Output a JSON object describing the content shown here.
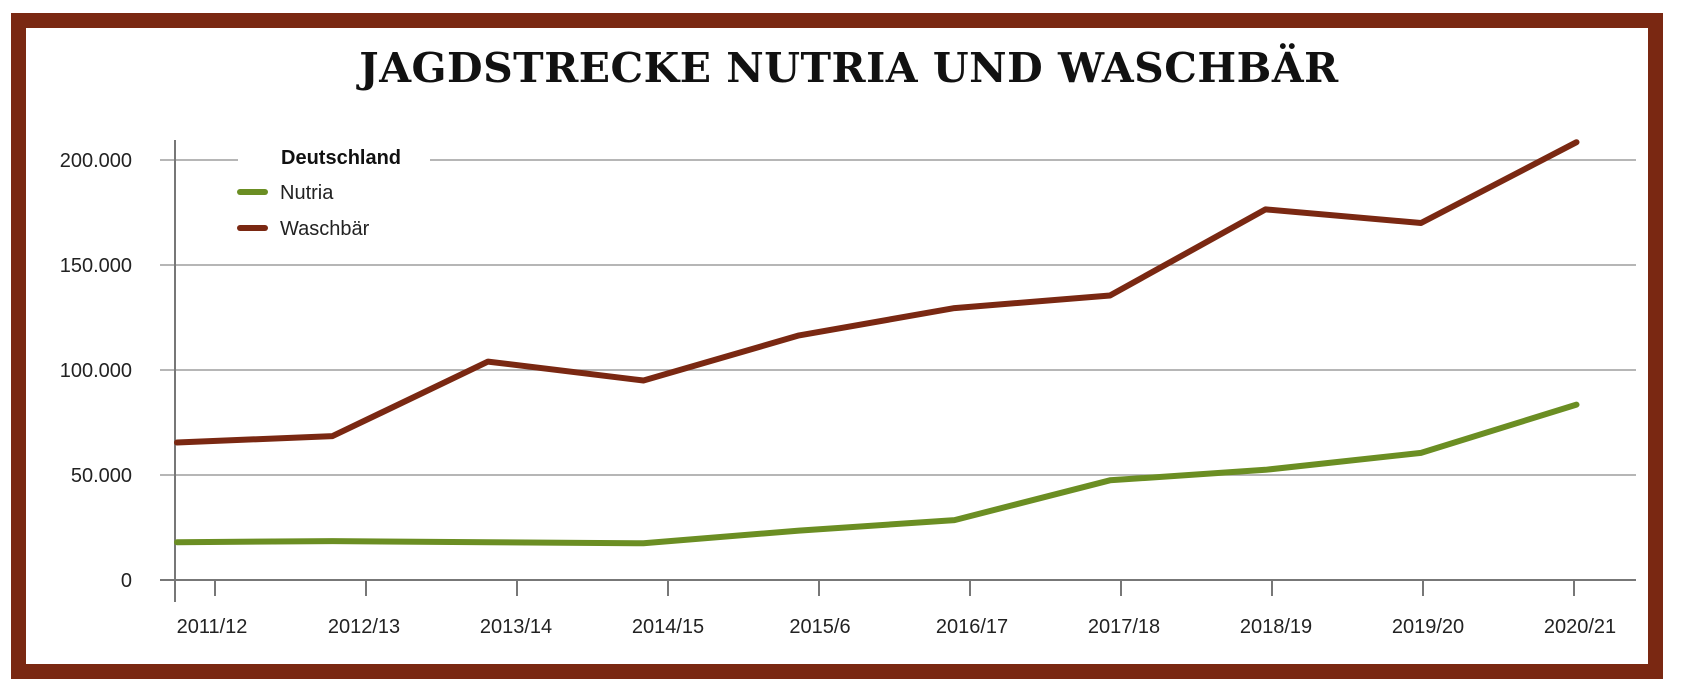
{
  "title": "JAGDSTRECKE NUTRIA UND WASCHBÄR",
  "colors": {
    "frame": "#7a2812",
    "nutria": "#6b8e23",
    "waschbaer": "#7a2812",
    "grid": "#9e9e9e",
    "axis": "#777777"
  },
  "chart_data": {
    "type": "line",
    "title": "JAGDSTRECKE NUTRIA UND WASCHBÄR",
    "xlabel": "",
    "ylabel": "",
    "categories": [
      "2011/12",
      "2012/13",
      "2013/14",
      "2014/15",
      "2015/6",
      "2016/17",
      "2017/18",
      "2018/19",
      "2019/20",
      "2020/21"
    ],
    "yticks": [
      0,
      50000,
      100000,
      150000,
      200000
    ],
    "ytick_labels": [
      "0",
      "50.000",
      "100.000",
      "150.000",
      "200.000"
    ],
    "ylim": [
      0,
      210000
    ],
    "grid": true,
    "legend": {
      "title": "Deutschland",
      "position": "top-left",
      "entries": [
        "Nutria",
        "Waschbär"
      ]
    },
    "series": [
      {
        "name": "Nutria",
        "color": "#6b8e23",
        "values": [
          18000,
          18500,
          18000,
          17500,
          23500,
          28500,
          47500,
          52500,
          60500,
          83500
        ]
      },
      {
        "name": "Waschbär",
        "color": "#7a2812",
        "values": [
          65500,
          68500,
          104000,
          95000,
          116500,
          129500,
          135500,
          176500,
          170000,
          208500
        ]
      }
    ]
  }
}
